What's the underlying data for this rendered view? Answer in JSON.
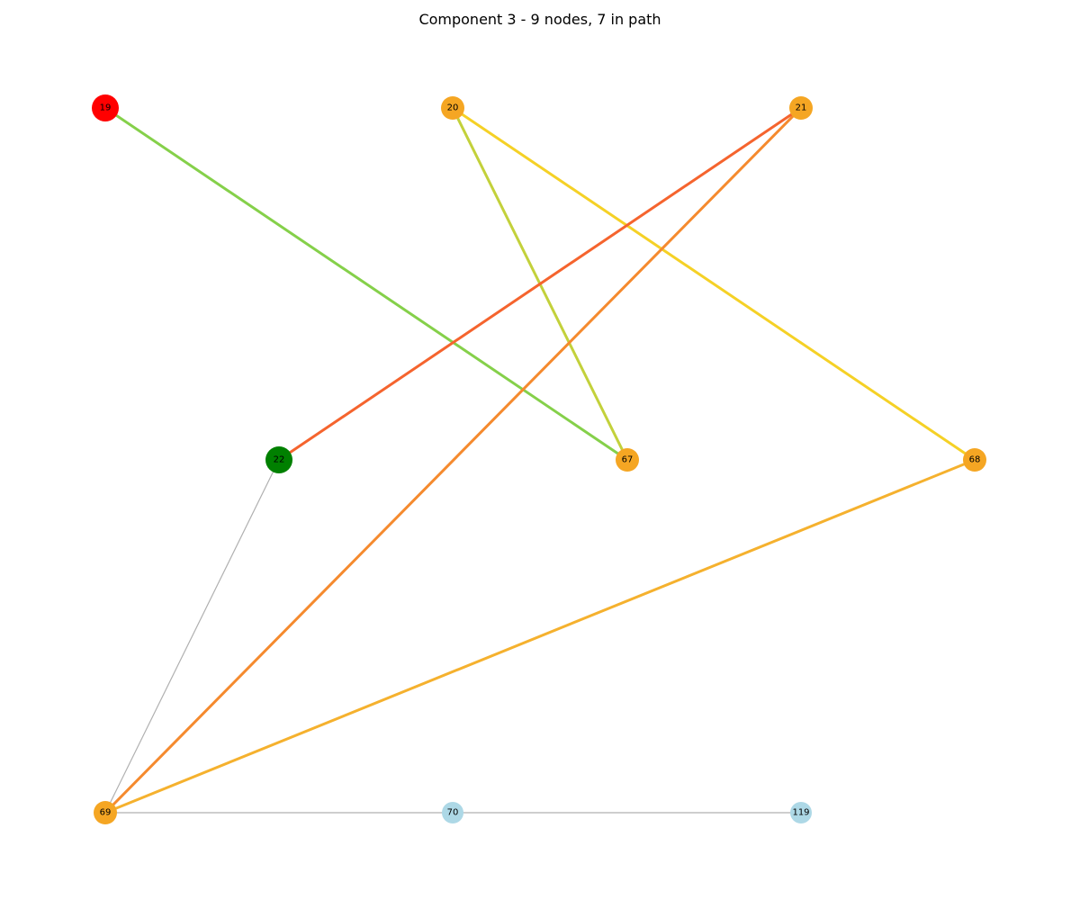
{
  "title": "Component 3 - 9 nodes, 7 in path",
  "graph": {
    "nodes": [
      {
        "id": "19",
        "label": "19",
        "color": "#ff0000",
        "role": "start"
      },
      {
        "id": "20",
        "label": "20",
        "color": "#f5a623",
        "role": "path"
      },
      {
        "id": "21",
        "label": "21",
        "color": "#f5a623",
        "role": "path"
      },
      {
        "id": "22",
        "label": "22",
        "color": "#008000",
        "role": "end"
      },
      {
        "id": "67",
        "label": "67",
        "color": "#f5a623",
        "role": "path"
      },
      {
        "id": "68",
        "label": "68",
        "color": "#f5a623",
        "role": "path"
      },
      {
        "id": "69",
        "label": "69",
        "color": "#f5a623",
        "role": "path"
      },
      {
        "id": "70",
        "label": "70",
        "color": "#add8e6",
        "role": "other"
      },
      {
        "id": "119",
        "label": "119",
        "color": "#add8e6",
        "role": "other"
      }
    ],
    "edges": [
      {
        "source": "19",
        "target": "67",
        "color": "#85d04a",
        "in_path": true
      },
      {
        "source": "67",
        "target": "20",
        "color": "#c3d13b",
        "in_path": true
      },
      {
        "source": "20",
        "target": "68",
        "color": "#f5d126",
        "in_path": true
      },
      {
        "source": "68",
        "target": "69",
        "color": "#f5b12e",
        "in_path": true
      },
      {
        "source": "69",
        "target": "21",
        "color": "#f58a2e",
        "in_path": true
      },
      {
        "source": "21",
        "target": "22",
        "color": "#f5642e",
        "in_path": true
      },
      {
        "source": "22",
        "target": "69",
        "color": "#b0b0b0",
        "in_path": false
      },
      {
        "source": "69",
        "target": "70",
        "color": "#b0b0b0",
        "in_path": false
      },
      {
        "source": "70",
        "target": "119",
        "color": "#b0b0b0",
        "in_path": false
      }
    ]
  }
}
